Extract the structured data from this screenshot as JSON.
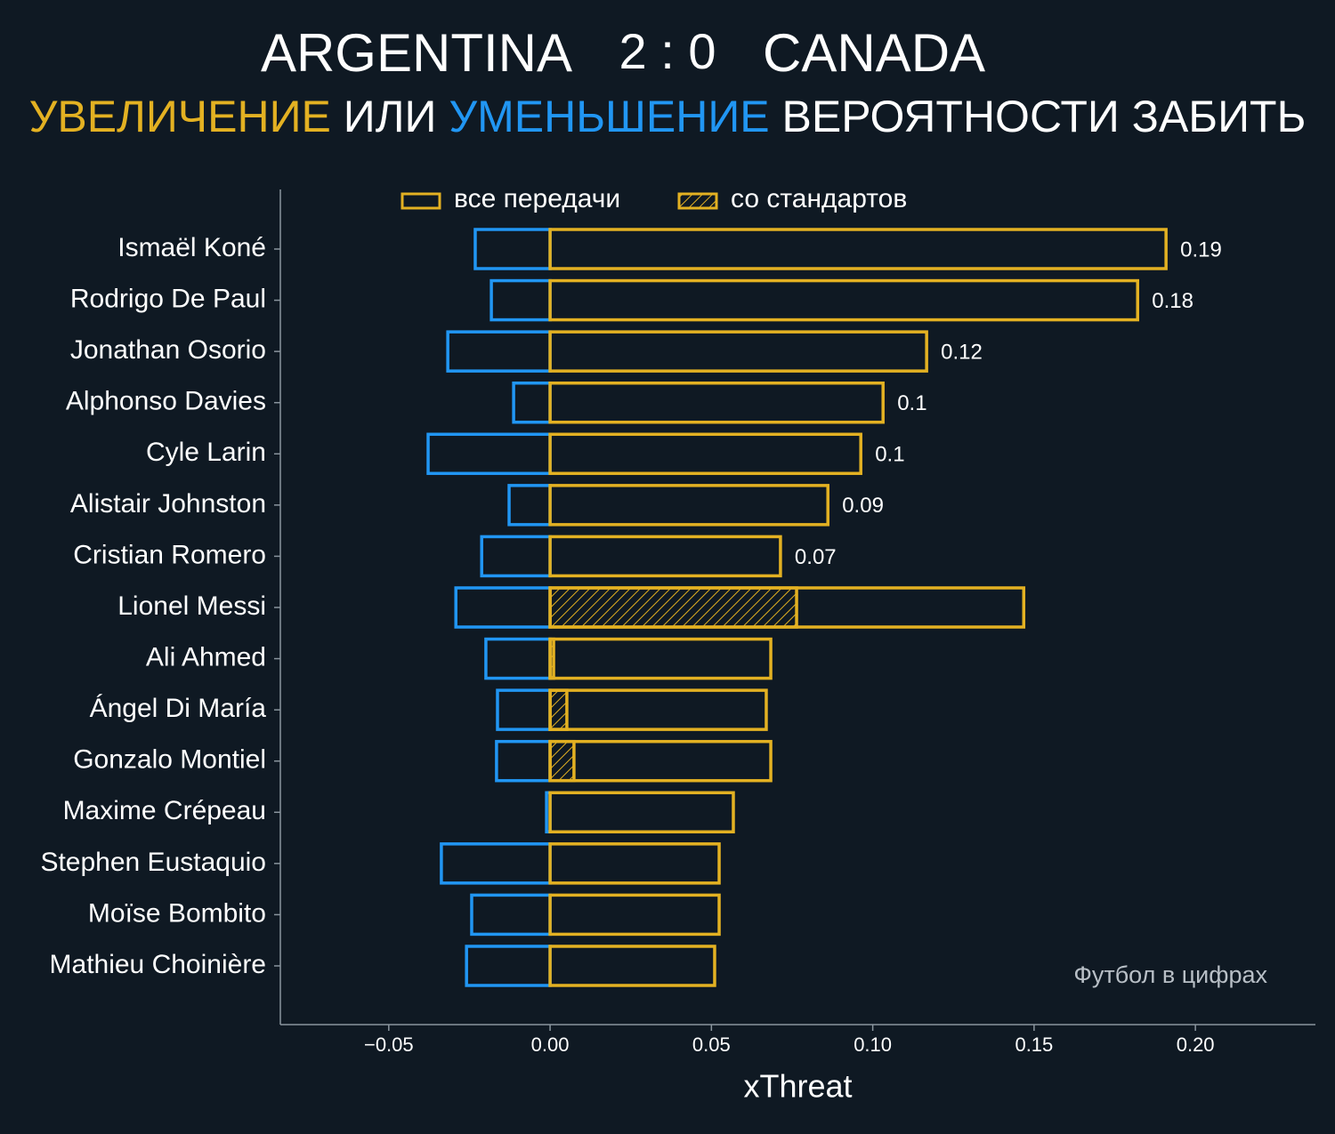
{
  "chart_data": {
    "type": "bar",
    "title": {
      "home": "ARGENTINA",
      "score": "2 : 0",
      "away": "CANADA"
    },
    "subtitle_parts": [
      {
        "text": "УВЕЛИЧЕНИЕ",
        "color": "#e3b122"
      },
      {
        "text": "ИЛИ",
        "color": "#ffffff"
      },
      {
        "text": "УМЕНЬШЕНИЕ",
        "color": "#2196f3"
      },
      {
        "text": "ВЕРОЯТНОСТИ ЗАБИТЬ",
        "color": "#ffffff"
      }
    ],
    "categories": [
      "Ismaël Koné",
      "Rodrigo De Paul",
      "Jonathan Osorio",
      "Alphonso Davies",
      "Cyle Larin",
      "Alistair Johnston",
      "Cristian Romero",
      "Lionel Messi",
      "Ali Ahmed",
      "Ángel Di María",
      "Gonzalo Montiel",
      "Maxime Crépeau",
      "Stephen Eustaquio",
      "Moïse Bombito",
      "Mathieu Choinière"
    ],
    "series": [
      {
        "name": "все передачи",
        "color": "#e3b122",
        "values": [
          0.1909,
          0.1821,
          0.1167,
          0.1032,
          0.0963,
          0.0861,
          0.0714,
          0.1468,
          0.0684,
          0.067,
          0.0684,
          0.0568,
          0.0524,
          0.0524,
          0.051
        ],
        "value_labels": [
          "0.19",
          "0.18",
          "0.12",
          "0.1",
          "0.1",
          "0.09",
          "0.07",
          null,
          null,
          null,
          null,
          null,
          null,
          null,
          null
        ]
      },
      {
        "name": "со стандартов",
        "color": "#e3b122",
        "hatch": true,
        "values": [
          0,
          0,
          0,
          0,
          0,
          0,
          0,
          0.0764,
          0.0011,
          0.0052,
          0.0074,
          0,
          0,
          0,
          0
        ]
      }
    ],
    "negative": {
      "color": "#2196f3",
      "values": [
        -0.0232,
        -0.0182,
        -0.0317,
        -0.0113,
        -0.0378,
        -0.0127,
        -0.0212,
        -0.0292,
        -0.0199,
        -0.0163,
        -0.0166,
        -0.0011,
        -0.0337,
        -0.0243,
        -0.0259
      ]
    },
    "xlim": [
      -0.0836,
      0.2372
    ],
    "xticks": [
      {
        "value": -0.05,
        "label": "−0.05"
      },
      {
        "value": 0,
        "label": "0.00"
      },
      {
        "value": 0.05,
        "label": "0.05"
      },
      {
        "value": 0.1,
        "label": "0.10"
      },
      {
        "value": 0.15,
        "label": "0.15"
      },
      {
        "value": 0.2,
        "label": "0.20"
      }
    ],
    "xlabel": "xThreat",
    "watermark": "Футбол в цифрах"
  }
}
